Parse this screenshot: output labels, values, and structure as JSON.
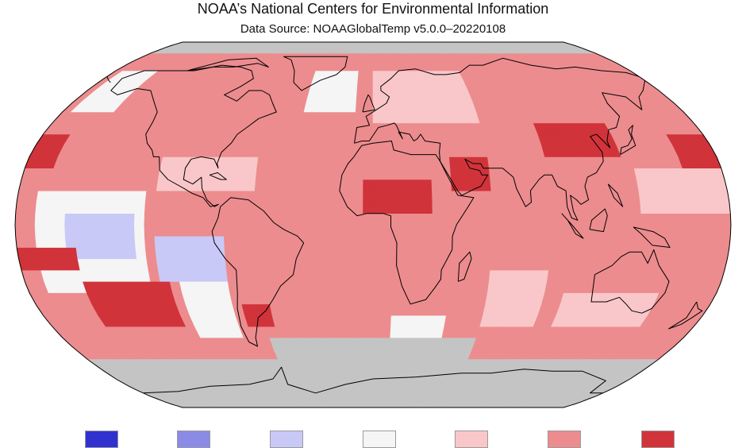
{
  "header": {
    "title": "NOAA’s National Centers for Environmental Information",
    "subtitle": "Data Source: NOAAGlobalTemp v5.0.0–20220108"
  },
  "map": {
    "projection": "robinson",
    "missing_color": "#c4c4c4",
    "coastline_color": "#000000",
    "lon_range": [
      -180,
      180
    ],
    "lat_range": [
      -90,
      90
    ],
    "anomaly_classes": [
      {
        "key": "much-cooler",
        "color": "#3131d0"
      },
      {
        "key": "cooler",
        "color": "#8b8be6"
      },
      {
        "key": "slightly-cooler",
        "color": "#c9c9f7"
      },
      {
        "key": "near-average",
        "color": "#f5f5f5"
      },
      {
        "key": "slightly-warmer",
        "color": "#f9c7c9"
      },
      {
        "key": "warmer",
        "color": "#ec8c8e"
      },
      {
        "key": "much-warmer",
        "color": "#d1333a"
      }
    ],
    "default_class": "warmer",
    "regions": [
      {
        "lon": [
          -180,
          180
        ],
        "lat": [
          -90,
          -62
        ],
        "class": "missing"
      },
      {
        "lon": [
          -60,
          60
        ],
        "lat": [
          -62,
          -50
        ],
        "class": "missing"
      },
      {
        "lon": [
          -180,
          180
        ],
        "lat": [
          78,
          90
        ],
        "class": "missing"
      },
      {
        "lon": [
          -170,
          -115
        ],
        "lat": [
          -30,
          15
        ],
        "class": "near-average"
      },
      {
        "lon": [
          -155,
          -120
        ],
        "lat": [
          -15,
          5
        ],
        "class": "slightly-cooler"
      },
      {
        "lon": [
          -110,
          -75
        ],
        "lat": [
          -25,
          -5
        ],
        "class": "slightly-cooler"
      },
      {
        "lon": [
          -100,
          -75
        ],
        "lat": [
          -50,
          -25
        ],
        "class": "near-average"
      },
      {
        "lon": [
          -150,
          -105
        ],
        "lat": [
          -45,
          -25
        ],
        "class": "much-warmer"
      },
      {
        "lon": [
          -175,
          -150
        ],
        "lat": [
          50,
          70
        ],
        "class": "near-average"
      },
      {
        "lon": [
          -40,
          -10
        ],
        "lat": [
          48,
          70
        ],
        "class": "near-average"
      },
      {
        "lon": [
          10,
          40
        ],
        "lat": [
          -50,
          -38
        ],
        "class": "near-average"
      },
      {
        "lon": [
          -5,
          30
        ],
        "lat": [
          5,
          20
        ],
        "class": "much-warmer"
      },
      {
        "lon": [
          40,
          60
        ],
        "lat": [
          15,
          32
        ],
        "class": "much-warmer"
      },
      {
        "lon": [
          90,
          130
        ],
        "lat": [
          28,
          45
        ],
        "class": "much-warmer"
      },
      {
        "lon": [
          160,
          180
        ],
        "lat": [
          25,
          40
        ],
        "class": "much-warmer"
      },
      {
        "lon": [
          -180,
          -165
        ],
        "lat": [
          25,
          40
        ],
        "class": "much-warmer"
      },
      {
        "lon": [
          -180,
          -150
        ],
        "lat": [
          -22,
          -10
        ],
        "class": "much-warmer"
      },
      {
        "lon": [
          -70,
          -55
        ],
        "lat": [
          -45,
          -35
        ],
        "class": "much-warmer"
      },
      {
        "lon": [
          -110,
          -60
        ],
        "lat": [
          15,
          30
        ],
        "class": "slightly-warmer"
      },
      {
        "lon": [
          60,
          90
        ],
        "lat": [
          -45,
          -20
        ],
        "class": "slightly-warmer"
      },
      {
        "lon": [
          100,
          150
        ],
        "lat": [
          -45,
          -30
        ],
        "class": "slightly-warmer"
      },
      {
        "lon": [
          0,
          60
        ],
        "lat": [
          45,
          70
        ],
        "class": "slightly-warmer"
      },
      {
        "lon": [
          135,
          180
        ],
        "lat": [
          5,
          25
        ],
        "class": "slightly-warmer"
      }
    ]
  },
  "legend": {
    "items": [
      {
        "key": "much-cooler",
        "color": "#3131d0"
      },
      {
        "key": "cooler",
        "color": "#8b8be6"
      },
      {
        "key": "slightly-cooler",
        "color": "#c9c9f7"
      },
      {
        "key": "near-average",
        "color": "#f5f5f5"
      },
      {
        "key": "slightly-warmer",
        "color": "#f9c7c9"
      },
      {
        "key": "warmer",
        "color": "#ec8c8e"
      },
      {
        "key": "much-warmer",
        "color": "#d1333a"
      }
    ]
  }
}
